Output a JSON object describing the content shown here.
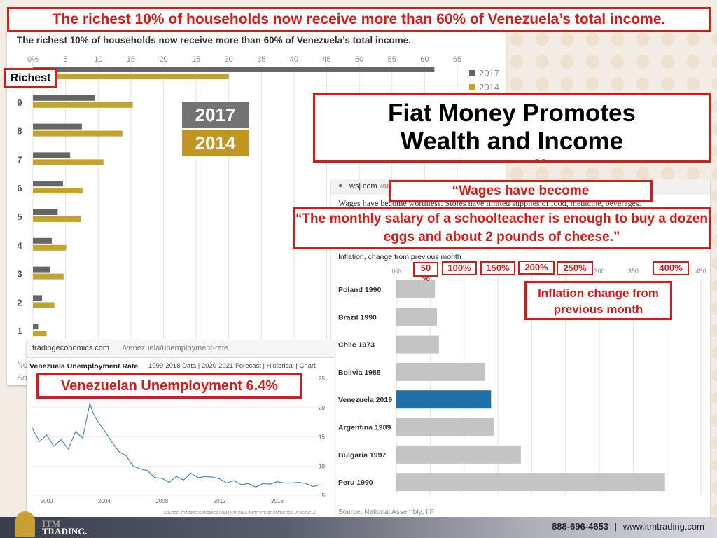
{
  "slide": {
    "banner": "The richest 10% of households now receive more than 60% of Venezuela’s total income.",
    "title": "Fiat Money Promotes Wealth and Income Inequality",
    "wages_quote": "“Wages have become",
    "salary_quote": "“The monthly salary of a schoolteacher is enough to buy a dozen eggs and about 2 pounds of cheese.”",
    "inflation_note": "Inflation change from previous month",
    "unemployment_note": "Venezuelan Unemployment 6.4%",
    "richest_label": "Richest",
    "year_2017_label": "2017",
    "year_2014_label": "2014",
    "pct_labels": [
      "50 %",
      "100%",
      "150%",
      "200%",
      "250%",
      "400%"
    ]
  },
  "footer": {
    "phone": "888-696-4653",
    "separator": "|",
    "website": "www.itmtrading.com",
    "logo_line1": "ITM",
    "logo_line2": "TRADING."
  },
  "income_chart": {
    "header": "The richest 10% of households now receive more than 60% of Venezuela’s total income.",
    "source_fragments": [
      "No",
      "So"
    ],
    "chart_data": {
      "type": "bar",
      "orientation": "horizontal",
      "categories": [
        "Richest",
        "9",
        "8",
        "7",
        "6",
        "5",
        "4",
        "3",
        "2",
        "1"
      ],
      "ticks": [
        "0%",
        "5",
        "10",
        "15",
        "20",
        "25",
        "30",
        "35",
        "40",
        "45",
        "50",
        "55",
        "60",
        "65"
      ],
      "xlim": [
        0,
        65
      ],
      "series": [
        {
          "name": "2017",
          "color": "#666666",
          "values": [
            61.5,
            9.5,
            7.5,
            5.7,
            4.6,
            3.8,
            2.9,
            2.6,
            1.4,
            0.8
          ]
        },
        {
          "name": "2014",
          "color": "#c4a22e",
          "values": [
            30.0,
            15.3,
            13.7,
            10.8,
            7.6,
            7.3,
            5.1,
            4.7,
            3.3,
            2.1
          ]
        }
      ],
      "legend": "top-right"
    }
  },
  "unemployment_chart": {
    "url_domain": "tradingeconomics.com",
    "url_path": "/venezuela/unemployment-rate",
    "title": "Venezuela Unemployment Rate",
    "subtitle": "1999-2018 Data | 2020-2021 Forecast | Historical | Chart",
    "source": "SOURCE: TRADINGECONOMICS.COM | NATIONAL INSTITUTE OF STATISTICS, VENEZUELA",
    "chart_data": {
      "type": "line",
      "x_ticks": [
        "2000",
        "2004",
        "2008",
        "2012",
        "2016"
      ],
      "y_ticks": [
        "25",
        "20",
        "15",
        "10",
        "5"
      ],
      "xlim": [
        1999,
        2019.5
      ],
      "ylim": [
        5,
        25
      ],
      "series": [
        {
          "color": "#4a86c0",
          "x": [
            1999.0,
            1999.5,
            2000.0,
            2000.5,
            2001.0,
            2001.5,
            2002.0,
            2002.5,
            2003.0,
            2003.2,
            2003.5,
            2004.0,
            2004.5,
            2005.0,
            2005.5,
            2006.0,
            2006.5,
            2007.0,
            2007.5,
            2008.0,
            2008.5,
            2009.0,
            2009.5,
            2010.0,
            2010.5,
            2011.0,
            2011.5,
            2012.0,
            2012.5,
            2013.0,
            2013.5,
            2014.0,
            2014.5,
            2015.0,
            2015.5,
            2016.0,
            2016.5,
            2017.0,
            2017.5,
            2018.0,
            2018.5,
            2019.0
          ],
          "values": [
            16.5,
            14.2,
            15.3,
            13.4,
            14.5,
            12.9,
            15.9,
            14.8,
            20.7,
            19.2,
            17.8,
            16.1,
            14.2,
            12.5,
            11.8,
            10.0,
            9.5,
            9.2,
            8.0,
            7.9,
            7.2,
            8.2,
            7.6,
            8.8,
            8.0,
            8.2,
            8.1,
            7.8,
            7.1,
            7.5,
            6.8,
            7.0,
            6.4,
            7.0,
            6.9,
            7.3,
            7.1,
            7.1,
            7.2,
            7.0,
            6.5,
            6.8
          ]
        }
      ]
    }
  },
  "inflation_chart": {
    "url_domain": "wsj.com",
    "url_path": "/articles/",
    "text_line": "Wages have become worthless. Stores have limited supplies of food, medicine, beverages.",
    "title": "Inflation, change from previous month",
    "source": "Source: National Assembly; IIF",
    "chart_data": {
      "type": "bar",
      "orientation": "horizontal",
      "categories": [
        "Poland 1990",
        "Brazil 1990",
        "Chile 1973",
        "Bolivia 1985",
        "Venezuela 2019",
        "Argentina 1989",
        "Bulgaria 1997",
        "Peru 1990"
      ],
      "values": [
        57,
        60,
        63,
        131,
        140,
        144,
        184,
        397
      ],
      "ticks": [
        "0%",
        "50",
        "100",
        "150",
        "200",
        "250",
        "300",
        "350",
        "400",
        "450"
      ],
      "xlim": [
        0,
        450
      ],
      "colors": {
        "default": "#c4c4c4",
        "highlight": "#1f72a8"
      },
      "highlight": "Venezuela 2019"
    }
  }
}
